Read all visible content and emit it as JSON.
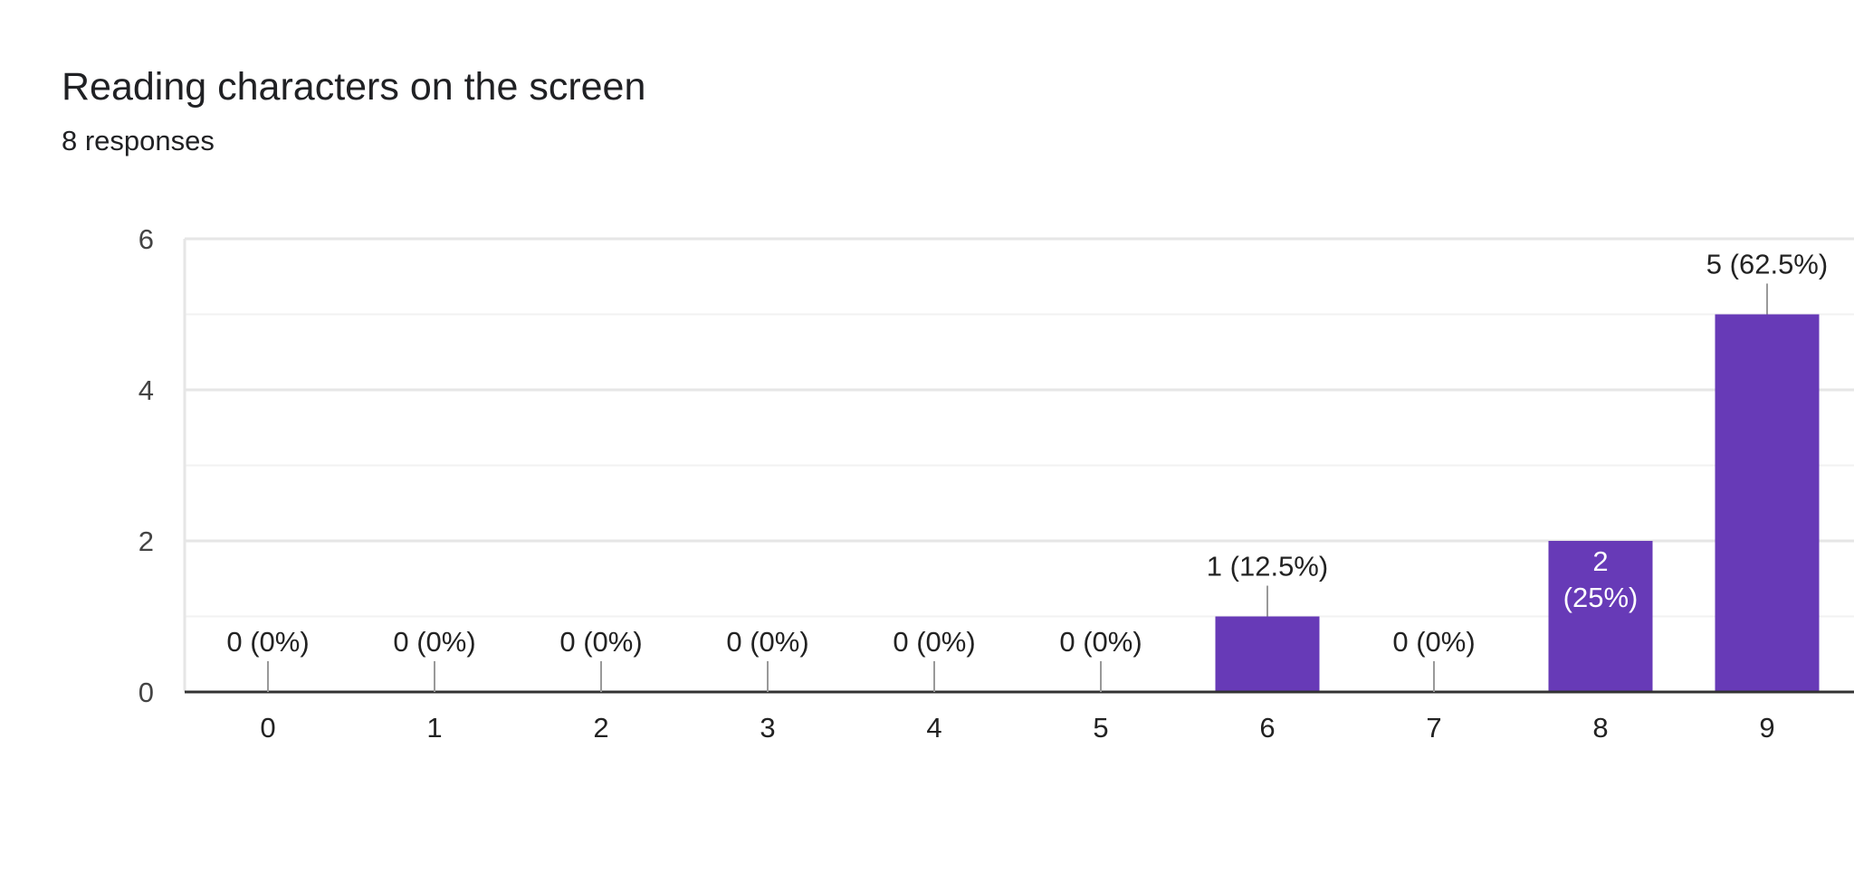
{
  "header": {
    "title": "Reading characters on the screen",
    "subtitle": "8 responses"
  },
  "colors": {
    "bar": "#673ab7",
    "axis": "#333333",
    "grid_major": "#e6e6e6",
    "grid_minor": "#f2f2f2",
    "text": "#222222",
    "tick_text": "#444444",
    "inside_label": "#ffffff",
    "leader": "#999999"
  },
  "chart_data": {
    "type": "bar",
    "categories": [
      "0",
      "1",
      "2",
      "3",
      "4",
      "5",
      "6",
      "7",
      "8",
      "9"
    ],
    "values": [
      0,
      0,
      0,
      0,
      0,
      0,
      1,
      0,
      2,
      5
    ],
    "data_labels": [
      "0 (0%)",
      "0 (0%)",
      "0 (0%)",
      "0 (0%)",
      "0 (0%)",
      "0 (0%)",
      "1 (12.5%)",
      "0 (0%)",
      "2 (25%)",
      "5 (62.5%)"
    ],
    "yticks": [
      0,
      2,
      4,
      6
    ],
    "ylim": [
      0,
      6
    ],
    "grid": true
  }
}
